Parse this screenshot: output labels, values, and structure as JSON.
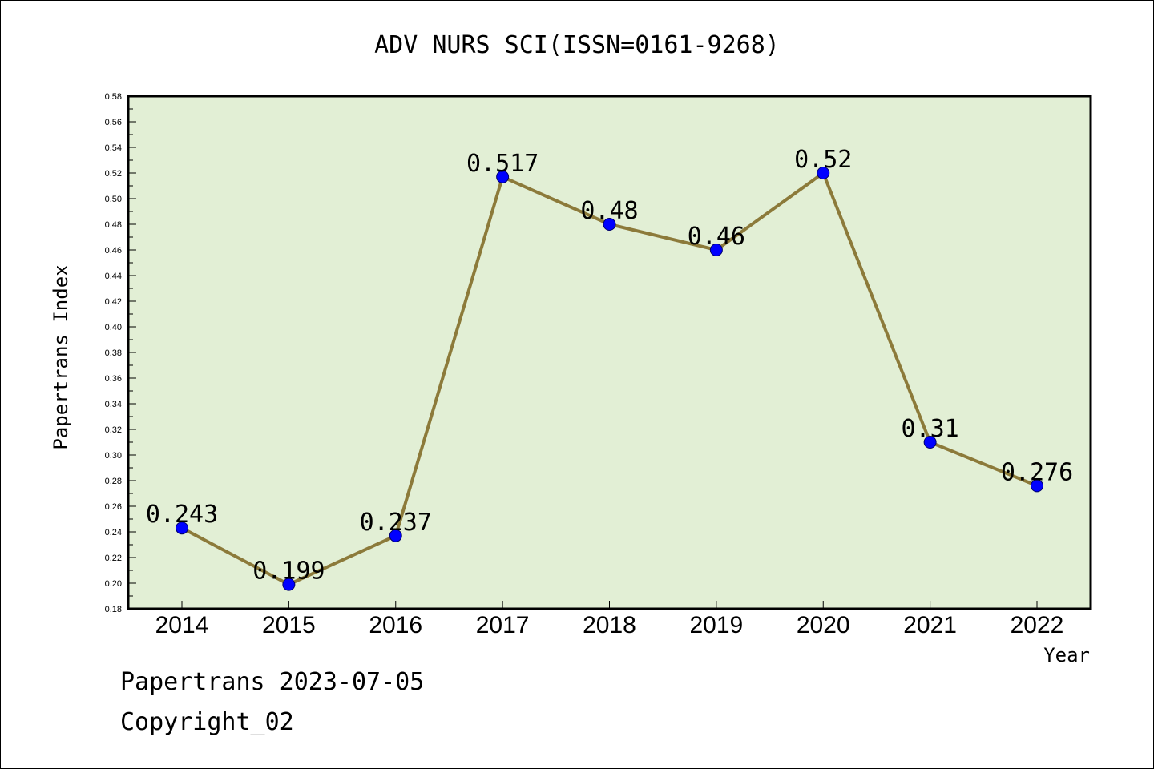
{
  "chart_data": {
    "type": "line",
    "title": "ADV NURS SCI(ISSN=0161-9268)",
    "xlabel": "Year",
    "ylabel": "Papertrans Index",
    "categories": [
      "2014",
      "2015",
      "2016",
      "2017",
      "2018",
      "2019",
      "2020",
      "2021",
      "2022"
    ],
    "series": [
      {
        "values": [
          0.243,
          0.199,
          0.237,
          0.517,
          0.48,
          0.46,
          0.52,
          0.31,
          0.276
        ],
        "labels": [
          "0.243",
          "0.199",
          "0.237",
          "0.517",
          "0.48",
          "0.46",
          "0.52",
          "0.31",
          "0.276"
        ]
      }
    ],
    "ylim": [
      0.18,
      0.58
    ],
    "yticks": [
      "0.18",
      "0.20",
      "0.22",
      "0.24",
      "0.26",
      "0.28",
      "0.30",
      "0.32",
      "0.34",
      "0.36",
      "0.38",
      "0.40",
      "0.42",
      "0.44",
      "0.46",
      "0.48",
      "0.50",
      "0.52",
      "0.54",
      "0.56",
      "0.58"
    ],
    "grid": false,
    "colors": {
      "plot_background": "#e2efd5",
      "line": "#8c7a3a",
      "marker": "#0000ff"
    }
  },
  "footer": {
    "line1": "Papertrans 2023-07-05",
    "line2": "Copyright_02"
  }
}
